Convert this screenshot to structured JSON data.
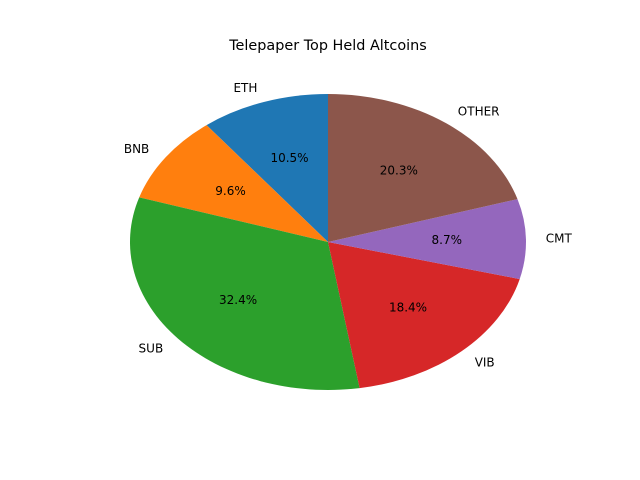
{
  "chart_data": {
    "type": "pie",
    "title": "Telepaper Top Held Altcoins",
    "start_angle_deg": 90,
    "direction": "counterclockwise",
    "slices": [
      {
        "label": "ETH",
        "value": 10.5,
        "pct_label": "10.5%",
        "color": "#1f77b4"
      },
      {
        "label": "BNB",
        "value": 9.6,
        "pct_label": "9.6%",
        "color": "#ff7f0e"
      },
      {
        "label": "SUB",
        "value": 32.4,
        "pct_label": "32.4%",
        "color": "#2ca02c"
      },
      {
        "label": "VIB",
        "value": 18.4,
        "pct_label": "18.4%",
        "color": "#d62728"
      },
      {
        "label": "CMT",
        "value": 8.7,
        "pct_label": "8.7%",
        "color": "#9467bd"
      },
      {
        "label": "OTHER",
        "value": 20.3,
        "pct_label": "20.3%",
        "color": "#8c564b"
      }
    ]
  }
}
